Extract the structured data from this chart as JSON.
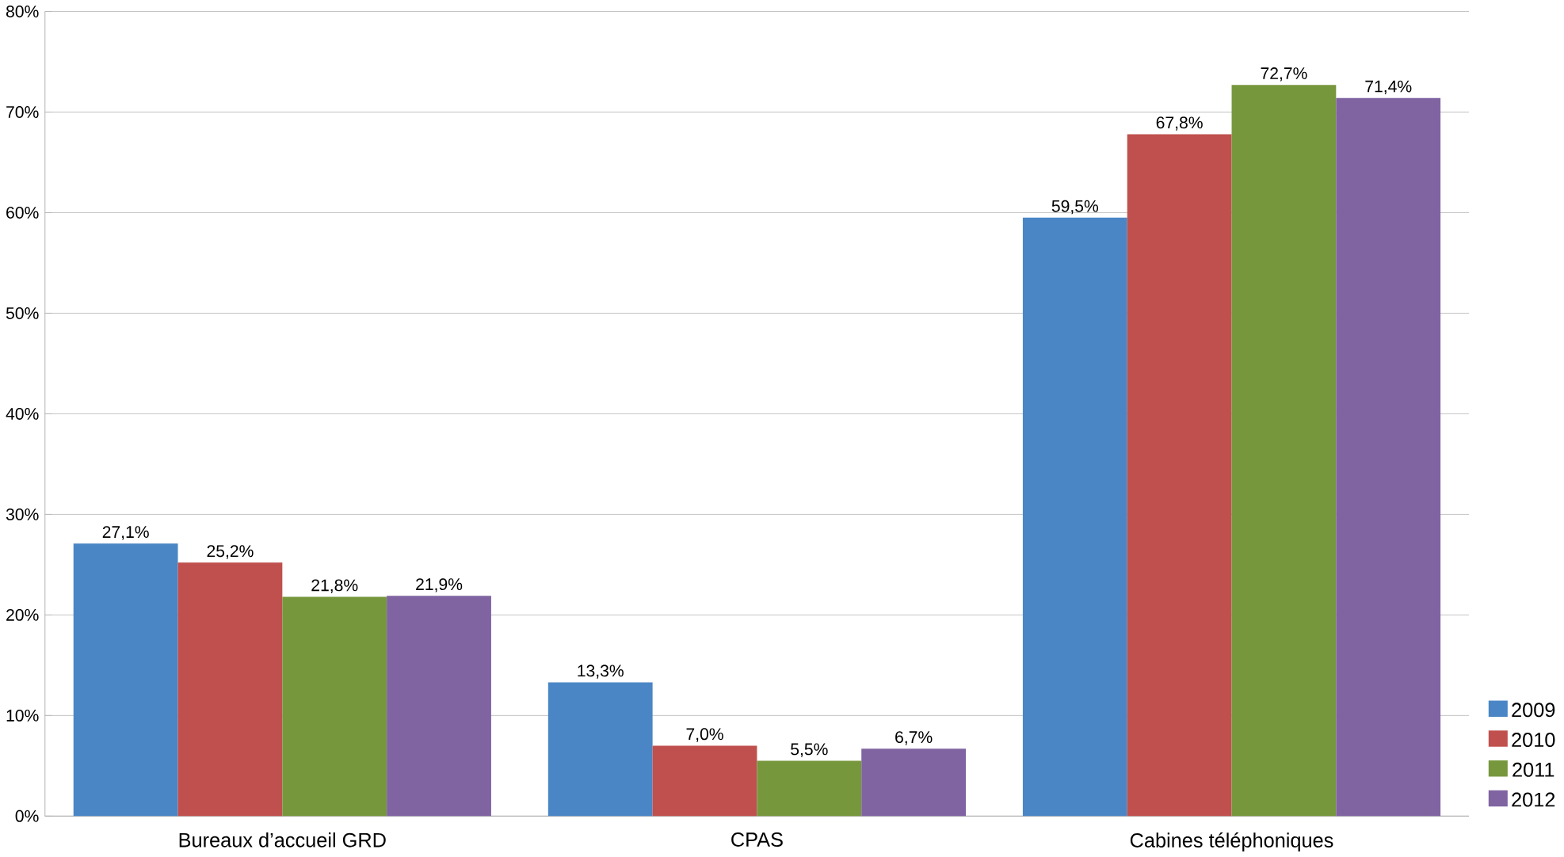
{
  "chart_data": {
    "type": "bar",
    "categories": [
      "Bureaux d’accueil GRD",
      "CPAS",
      "Cabines téléphoniques"
    ],
    "series": [
      {
        "name": "2009",
        "color": "#4a86c5",
        "values": [
          27.1,
          13.3,
          59.5
        ],
        "value_labels": [
          "27,1%",
          "13,3%",
          "59,5%"
        ]
      },
      {
        "name": "2010",
        "color": "#c0504d",
        "values": [
          25.2,
          7.0,
          67.8
        ],
        "value_labels": [
          "25,2%",
          "7,0%",
          "67,8%"
        ]
      },
      {
        "name": "2011",
        "color": "#77973d",
        "values": [
          21.8,
          5.5,
          72.7
        ],
        "value_labels": [
          "21,8%",
          "5,5%",
          "72,7%"
        ]
      },
      {
        "name": "2012",
        "color": "#8064a2",
        "values": [
          21.9,
          6.7,
          71.4
        ],
        "value_labels": [
          "21,9%",
          "6,7%",
          "71,4%"
        ]
      }
    ],
    "ylim": [
      0,
      80
    ],
    "yticks": [
      {
        "value": 0,
        "label": "0%"
      },
      {
        "value": 10,
        "label": "10%"
      },
      {
        "value": 20,
        "label": "20%"
      },
      {
        "value": 30,
        "label": "30%"
      },
      {
        "value": 40,
        "label": "40%"
      },
      {
        "value": 50,
        "label": "50%"
      },
      {
        "value": 60,
        "label": "60%"
      },
      {
        "value": 70,
        "label": "70%"
      },
      {
        "value": 80,
        "label": "80%"
      }
    ],
    "grid": "y",
    "legend": "bottom right"
  }
}
